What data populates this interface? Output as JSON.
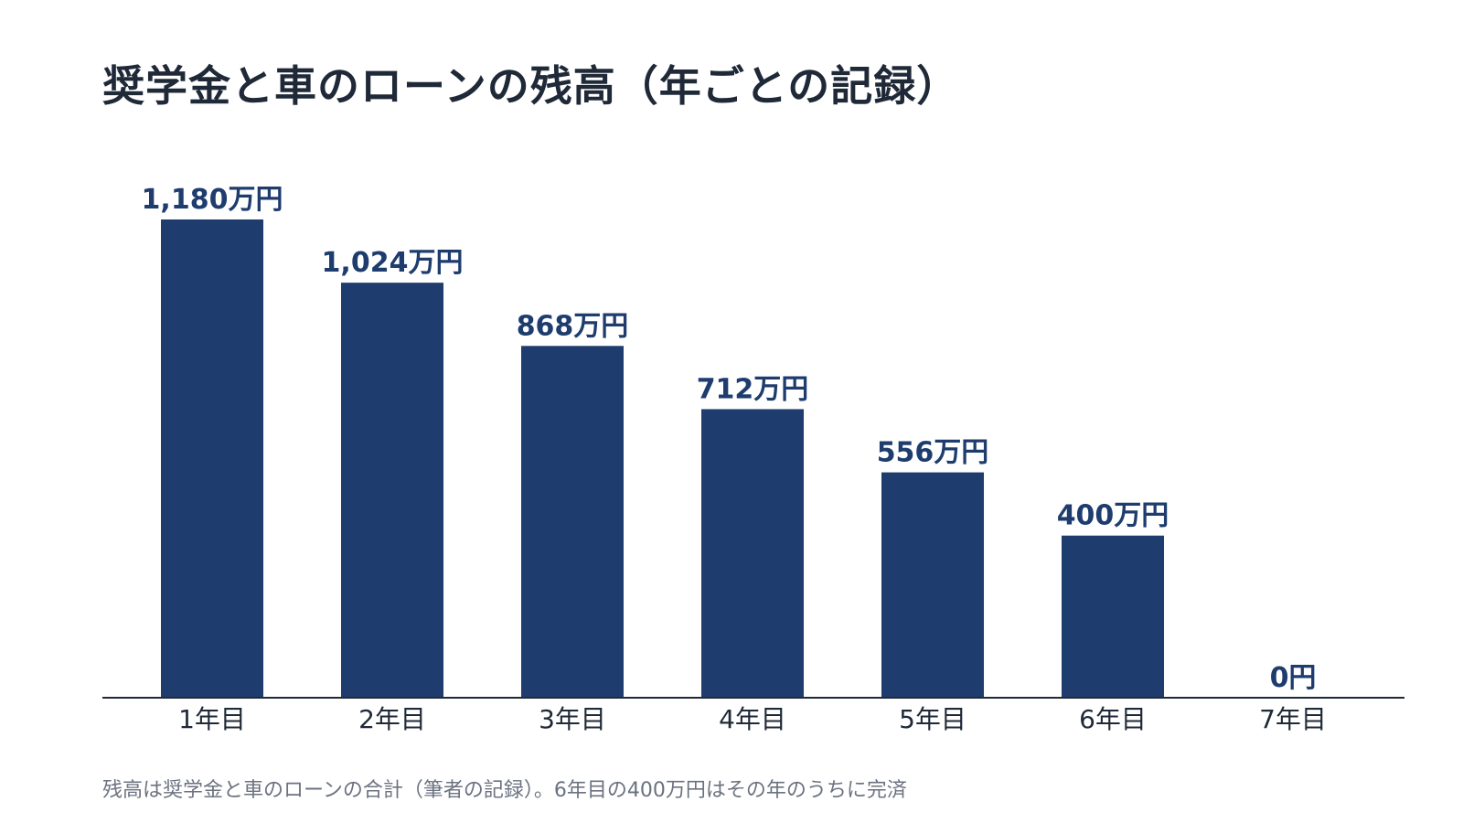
{
  "chart_data": {
    "type": "bar",
    "title": "奨学金と車のローンの残高（年ごとの記録）",
    "categories": [
      "1年目",
      "2年目",
      "3年目",
      "4年目",
      "5年目",
      "6年目",
      "7年目"
    ],
    "values": [
      1180,
      1024,
      868,
      712,
      556,
      400,
      0
    ],
    "data_labels": [
      "1,180万円",
      "1,024万円",
      "868万円",
      "712万円",
      "556万円",
      "400万円",
      "0円"
    ],
    "xlabel": "",
    "ylabel": "",
    "ylim": [
      0,
      1180
    ],
    "grid": false,
    "legend": "none",
    "bar_color": "#1e3d6e",
    "label_color": "#1e3d6e",
    "note": "残高は奨学金と車のローンの合計（筆者の記録）。6年目の400万円はその年のうちに完済"
  }
}
